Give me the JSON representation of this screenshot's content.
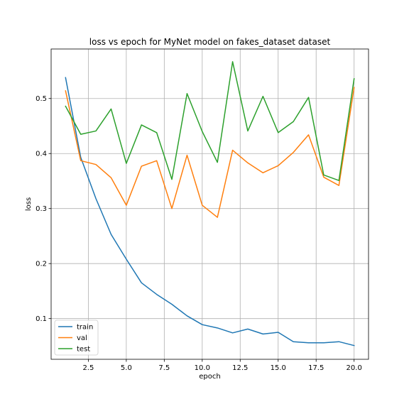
{
  "chart_data": {
    "type": "line",
    "title": "loss vs epoch for MyNet model on fakes_dataset dataset",
    "xlabel": "epoch",
    "ylabel": "loss",
    "xlim": [
      0.05,
      20.95
    ],
    "ylim": [
      0.026,
      0.59
    ],
    "xticks": [
      2.5,
      5.0,
      7.5,
      10.0,
      12.5,
      15.0,
      17.5,
      20.0
    ],
    "xtick_labels": [
      "2.5",
      "5.0",
      "7.5",
      "10.0",
      "12.5",
      "15.0",
      "17.5",
      "20.0"
    ],
    "yticks": [
      0.1,
      0.2,
      0.3,
      0.4,
      0.5
    ],
    "ytick_labels": [
      "0.1",
      "0.2",
      "0.3",
      "0.4",
      "0.5"
    ],
    "grid": true,
    "legend_position": "lower-left",
    "x": [
      1,
      2,
      3,
      4,
      5,
      6,
      7,
      8,
      9,
      10,
      11,
      12,
      13,
      14,
      15,
      16,
      17,
      18,
      19,
      20
    ],
    "series": [
      {
        "name": "train",
        "color": "#1f77b4",
        "values": [
          0.538,
          0.393,
          0.318,
          0.253,
          0.208,
          0.165,
          0.144,
          0.126,
          0.105,
          0.089,
          0.083,
          0.074,
          0.081,
          0.072,
          0.075,
          0.058,
          0.056,
          0.056,
          0.058,
          0.051
        ]
      },
      {
        "name": "val",
        "color": "#ff7f0e",
        "values": [
          0.514,
          0.387,
          0.38,
          0.356,
          0.306,
          0.377,
          0.387,
          0.3,
          0.397,
          0.306,
          0.284,
          0.406,
          0.383,
          0.365,
          0.378,
          0.402,
          0.434,
          0.357,
          0.342,
          0.52
        ]
      },
      {
        "name": "test",
        "color": "#2ca02c",
        "values": [
          0.486,
          0.435,
          0.441,
          0.481,
          0.382,
          0.452,
          0.438,
          0.353,
          0.509,
          0.44,
          0.384,
          0.567,
          0.441,
          0.504,
          0.438,
          0.458,
          0.502,
          0.361,
          0.351,
          0.536
        ]
      }
    ]
  }
}
